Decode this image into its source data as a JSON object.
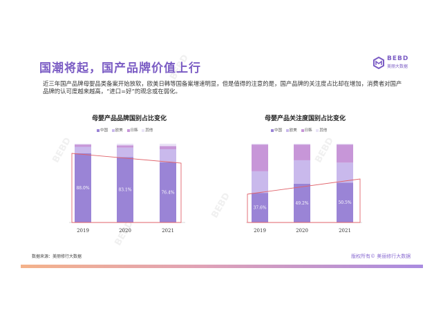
{
  "header": {
    "title": "国潮将起，国产品牌价值上行",
    "logo_en": "BEBD",
    "logo_cn": "美丽大数据"
  },
  "intro": "近三年国产品牌母婴品类备案开始放软，欧美日韩等国备案增速明显，但是值得的注意的是，国产品牌的关注度占比却在增加，消费者对国产品牌的认可度越来越高，“进口=好”的观念或在弱化。",
  "colors": {
    "china": "#9a84d6",
    "euus": "#c9b9ec",
    "jpkr": "#c796d8",
    "other": "#e9e3f6",
    "highlight": "#e0626a",
    "title": "#7b5cc4"
  },
  "chart_data": [
    {
      "type": "bar",
      "stacked": true,
      "title": "母婴产品品牌国别占比变化",
      "legend": [
        "中国",
        "欧美",
        "日韩",
        "其他"
      ],
      "categories": [
        "2019",
        "2020",
        "2021"
      ],
      "series": [
        {
          "name": "中国",
          "values": [
            88.0,
            83.1,
            76.4
          ],
          "labels": [
            "88.0%",
            "83.1%",
            "76.4%"
          ]
        },
        {
          "name": "欧美",
          "values": [
            8.0,
            11.9,
            16.6
          ]
        },
        {
          "name": "日韩",
          "values": [
            3.0,
            3.0,
            4.0
          ]
        },
        {
          "name": "其他",
          "values": [
            1.0,
            2.0,
            3.0
          ]
        }
      ],
      "ylim": [
        0,
        100
      ]
    },
    {
      "type": "bar",
      "stacked": true,
      "title": "母婴产品关注度国别占比变化",
      "legend": [
        "中国",
        "欧美",
        "日韩",
        "其他"
      ],
      "categories": [
        "2019",
        "2020",
        "2021"
      ],
      "series": [
        {
          "name": "中国",
          "values": [
            37.6,
            49.2,
            50.5
          ],
          "labels": [
            "37.6%",
            "49.2%",
            "50.5%"
          ]
        },
        {
          "name": "欧美",
          "values": [
            27.4,
            29.8,
            25.5
          ]
        },
        {
          "name": "日韩",
          "values": [
            34.0,
            20.0,
            23.0
          ]
        },
        {
          "name": "其他",
          "values": [
            1.0,
            1.0,
            1.0
          ]
        }
      ],
      "ylim": [
        0,
        100
      ]
    }
  ],
  "footer": {
    "source": "数据来源：美丽修行大数据",
    "copyright": "版权所有© 美丽修行大数据"
  }
}
